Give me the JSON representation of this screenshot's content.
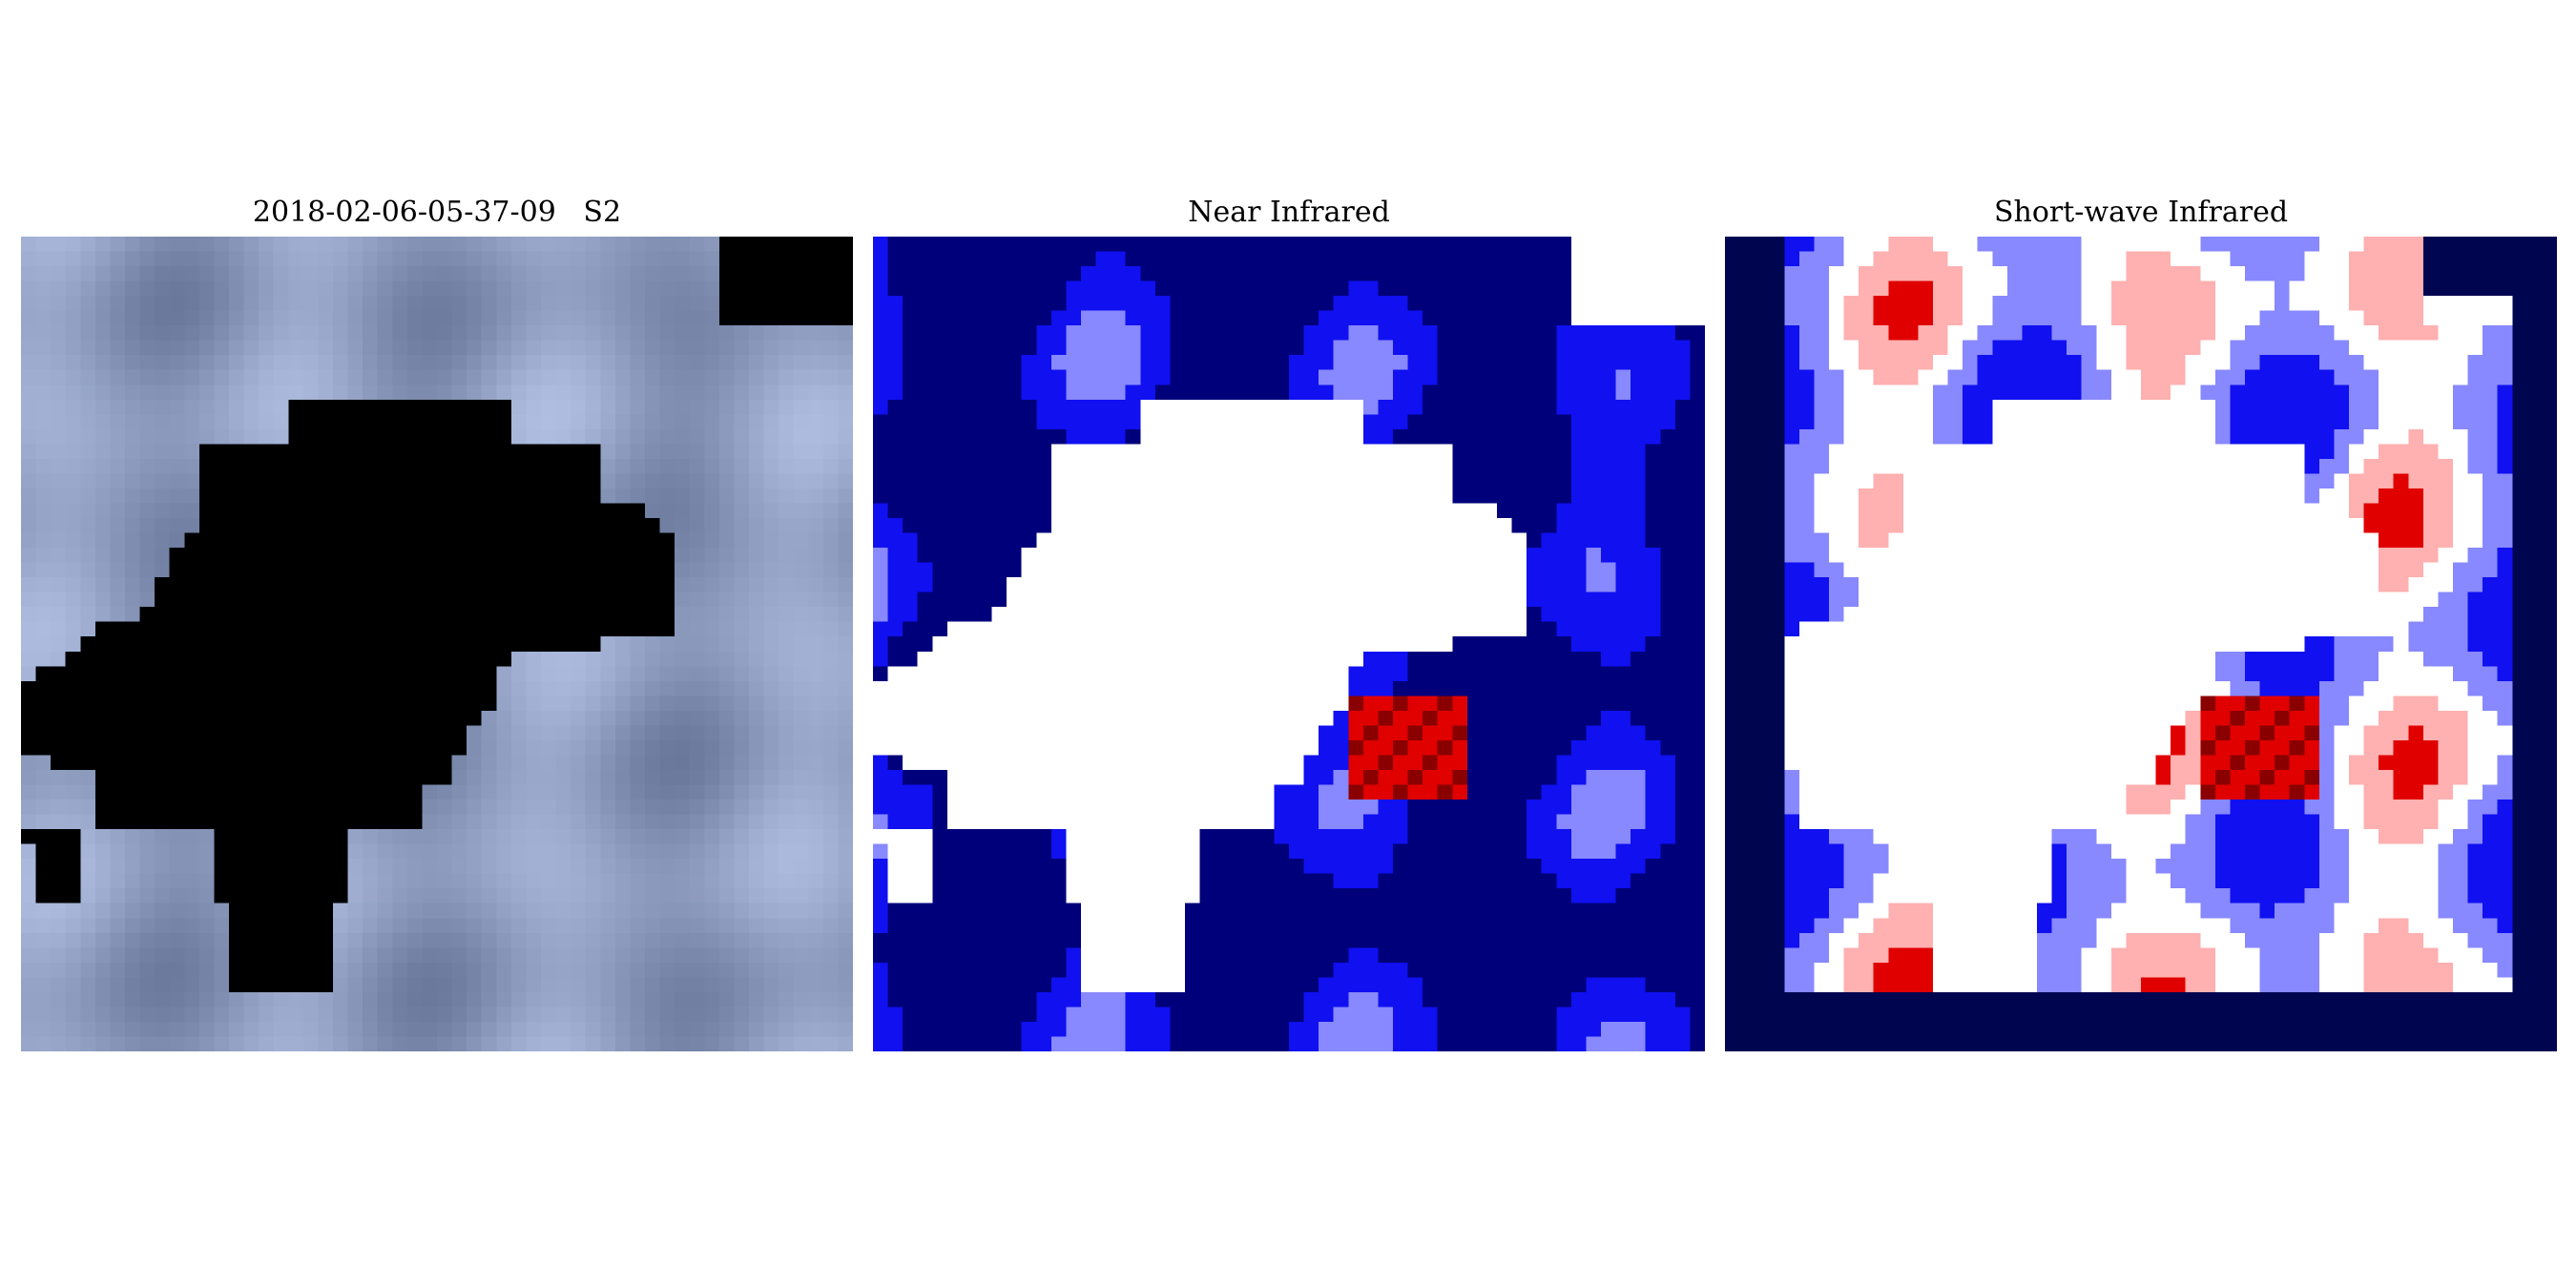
{
  "figure": {
    "panels": [
      {
        "title": "2018-02-06-05-37-09   S2",
        "kind": "true-color composite with masked region"
      },
      {
        "title": "Near Infrared",
        "kind": "false-color map, blue-white-red"
      },
      {
        "title": "Short-wave Infrared",
        "kind": "false-color map, blue-white-red"
      }
    ]
  },
  "colors": {
    "mask_black": "#000000",
    "nodata_navy": "#000550",
    "blue_deep": "#00007a",
    "blue": "#1010f0",
    "white": "#ffffff",
    "red": "#e00000",
    "dark_red": "#8a0000",
    "gray_blue": "#8fa0b8"
  }
}
